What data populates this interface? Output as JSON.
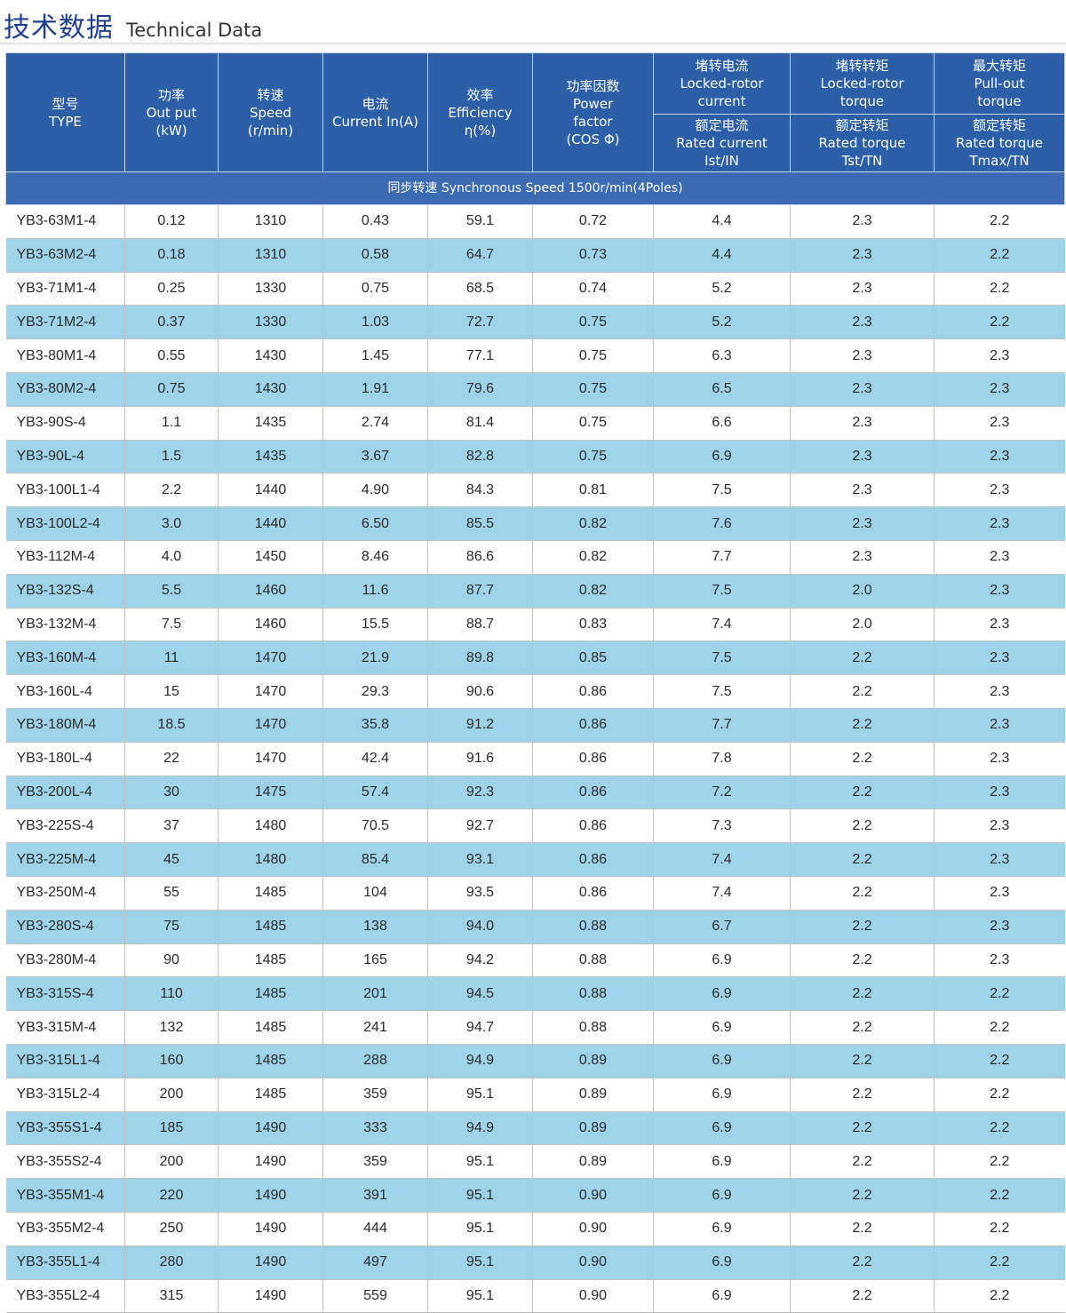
{
  "title": {
    "cn": "技术数据",
    "en": "Technical Data"
  },
  "columns": [
    [
      "型号",
      "TYPE"
    ],
    [
      "功率",
      "Out put",
      "(kW)"
    ],
    [
      "转速",
      "Speed",
      "(r/min)"
    ],
    [
      "电流",
      "Current In(A)"
    ],
    [
      "效率",
      "Efficiency",
      "η(%)"
    ],
    [
      "功率因数",
      "Power",
      "factor",
      "(COS Φ)"
    ]
  ],
  "ratio_columns": [
    {
      "top": [
        "堵转电流",
        "Locked-rotor",
        "current"
      ],
      "bottom": [
        "额定电流",
        "Rated current",
        "Ist/IN"
      ]
    },
    {
      "top": [
        "堵转转矩",
        "Locked-rotor",
        "torque"
      ],
      "bottom": [
        "额定转矩",
        "Rated torque",
        "Tst/TN"
      ]
    },
    {
      "top": [
        "最大转矩",
        "Pull-out",
        "torque"
      ],
      "bottom": [
        "额定转矩",
        "Rated torque",
        "Tmax/TN"
      ]
    }
  ],
  "sync_speed": "同步转速 Synchronous Speed 1500r/min(4Poles)",
  "rows": [
    [
      "YB3-63M1-4",
      "0.12",
      "1310",
      "0.43",
      "59.1",
      "0.72",
      "4.4",
      "2.3",
      "2.2"
    ],
    [
      "YB3-63M2-4",
      "0.18",
      "1310",
      "0.58",
      "64.7",
      "0.73",
      "4.4",
      "2.3",
      "2.2"
    ],
    [
      "YB3-71M1-4",
      "0.25",
      "1330",
      "0.75",
      "68.5",
      "0.74",
      "5.2",
      "2.3",
      "2.2"
    ],
    [
      "YB3-71M2-4",
      "0.37",
      "1330",
      "1.03",
      "72.7",
      "0.75",
      "5.2",
      "2.3",
      "2.2"
    ],
    [
      "YB3-80M1-4",
      "0.55",
      "1430",
      "1.45",
      "77.1",
      "0.75",
      "6.3",
      "2.3",
      "2.3"
    ],
    [
      "YB3-80M2-4",
      "0.75",
      "1430",
      "1.91",
      "79.6",
      "0.75",
      "6.5",
      "2.3",
      "2.3"
    ],
    [
      "YB3-90S-4",
      "1.1",
      "1435",
      "2.74",
      "81.4",
      "0.75",
      "6.6",
      "2.3",
      "2.3"
    ],
    [
      "YB3-90L-4",
      "1.5",
      "1435",
      "3.67",
      "82.8",
      "0.75",
      "6.9",
      "2.3",
      "2.3"
    ],
    [
      "YB3-100L1-4",
      "2.2",
      "1440",
      "4.90",
      "84.3",
      "0.81",
      "7.5",
      "2.3",
      "2.3"
    ],
    [
      "YB3-100L2-4",
      "3.0",
      "1440",
      "6.50",
      "85.5",
      "0.82",
      "7.6",
      "2.3",
      "2.3"
    ],
    [
      "YB3-112M-4",
      "4.0",
      "1450",
      "8.46",
      "86.6",
      "0.82",
      "7.7",
      "2.3",
      "2.3"
    ],
    [
      "YB3-132S-4",
      "5.5",
      "1460",
      "11.6",
      "87.7",
      "0.82",
      "7.5",
      "2.0",
      "2.3"
    ],
    [
      "YB3-132M-4",
      "7.5",
      "1460",
      "15.5",
      "88.7",
      "0.83",
      "7.4",
      "2.0",
      "2.3"
    ],
    [
      "YB3-160M-4",
      "11",
      "1470",
      "21.9",
      "89.8",
      "0.85",
      "7.5",
      "2.2",
      "2.3"
    ],
    [
      "YB3-160L-4",
      "15",
      "1470",
      "29.3",
      "90.6",
      "0.86",
      "7.5",
      "2.2",
      "2.3"
    ],
    [
      "YB3-180M-4",
      "18.5",
      "1470",
      "35.8",
      "91.2",
      "0.86",
      "7.7",
      "2.2",
      "2.3"
    ],
    [
      "YB3-180L-4",
      "22",
      "1470",
      "42.4",
      "91.6",
      "0.86",
      "7.8",
      "2.2",
      "2.3"
    ],
    [
      "YB3-200L-4",
      "30",
      "1475",
      "57.4",
      "92.3",
      "0.86",
      "7.2",
      "2.2",
      "2.3"
    ],
    [
      "YB3-225S-4",
      "37",
      "1480",
      "70.5",
      "92.7",
      "0.86",
      "7.3",
      "2.2",
      "2.3"
    ],
    [
      "YB3-225M-4",
      "45",
      "1480",
      "85.4",
      "93.1",
      "0.86",
      "7.4",
      "2.2",
      "2.3"
    ],
    [
      "YB3-250M-4",
      "55",
      "1485",
      "104",
      "93.5",
      "0.86",
      "7.4",
      "2.2",
      "2.3"
    ],
    [
      "YB3-280S-4",
      "75",
      "1485",
      "138",
      "94.0",
      "0.88",
      "6.7",
      "2.2",
      "2.3"
    ],
    [
      "YB3-280M-4",
      "90",
      "1485",
      "165",
      "94.2",
      "0.88",
      "6.9",
      "2.2",
      "2.3"
    ],
    [
      "YB3-315S-4",
      "110",
      "1485",
      "201",
      "94.5",
      "0.88",
      "6.9",
      "2.2",
      "2.2"
    ],
    [
      "YB3-315M-4",
      "132",
      "1485",
      "241",
      "94.7",
      "0.88",
      "6.9",
      "2.2",
      "2.2"
    ],
    [
      "YB3-315L1-4",
      "160",
      "1485",
      "288",
      "94.9",
      "0.89",
      "6.9",
      "2.2",
      "2.2"
    ],
    [
      "YB3-315L2-4",
      "200",
      "1485",
      "359",
      "95.1",
      "0.89",
      "6.9",
      "2.2",
      "2.2"
    ],
    [
      "YB3-355S1-4",
      "185",
      "1490",
      "333",
      "94.9",
      "0.89",
      "6.9",
      "2.2",
      "2.2"
    ],
    [
      "YB3-355S2-4",
      "200",
      "1490",
      "359",
      "95.1",
      "0.89",
      "6.9",
      "2.2",
      "2.2"
    ],
    [
      "YB3-355M1-4",
      "220",
      "1490",
      "391",
      "95.1",
      "0.90",
      "6.9",
      "2.2",
      "2.2"
    ],
    [
      "YB3-355M2-4",
      "250",
      "1490",
      "444",
      "95.1",
      "0.90",
      "6.9",
      "2.2",
      "2.2"
    ],
    [
      "YB3-355L1-4",
      "280",
      "1490",
      "497",
      "95.1",
      "0.90",
      "6.9",
      "2.2",
      "2.2"
    ],
    [
      "YB3-355L2-4",
      "315",
      "1490",
      "559",
      "95.1",
      "0.90",
      "6.9",
      "2.2",
      "2.2"
    ]
  ]
}
